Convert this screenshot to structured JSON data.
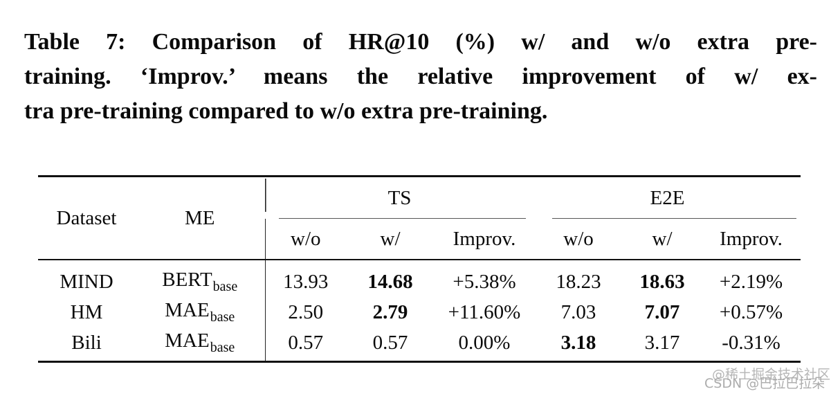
{
  "caption": {
    "lines": [
      "Table 7: Comparison of HR@10 (%) w/ and w/o extra pre-",
      "training. ‘Improv.’ means the relative improvement of w/ ex-",
      "tra pre-training compared to w/o extra pre-training."
    ]
  },
  "table": {
    "header": {
      "dataset_label": "Dataset",
      "me_label": "ME",
      "groups": [
        {
          "label": "TS"
        },
        {
          "label": "E2E"
        }
      ],
      "subheaders": [
        "w/o",
        "w/",
        "Improv.",
        "w/o",
        "w/",
        "Improv."
      ]
    },
    "rows": [
      {
        "dataset": "MIND",
        "me": "BERT",
        "me_sub": "base",
        "cells": [
          {
            "v": "13.93",
            "bold": false
          },
          {
            "v": "14.68",
            "bold": true
          },
          {
            "v": "+5.38%",
            "bold": false
          },
          {
            "v": "18.23",
            "bold": false
          },
          {
            "v": "18.63",
            "bold": true
          },
          {
            "v": "+2.19%",
            "bold": false
          }
        ]
      },
      {
        "dataset": "HM",
        "me": "MAE",
        "me_sub": "base",
        "cells": [
          {
            "v": "2.50",
            "bold": false
          },
          {
            "v": "2.79",
            "bold": true
          },
          {
            "v": "+11.60%",
            "bold": false
          },
          {
            "v": "7.03",
            "bold": false
          },
          {
            "v": "7.07",
            "bold": true
          },
          {
            "v": "+0.57%",
            "bold": false
          }
        ]
      },
      {
        "dataset": "Bili",
        "me": "MAE",
        "me_sub": "base",
        "cells": [
          {
            "v": "0.57",
            "bold": false
          },
          {
            "v": "0.57",
            "bold": false
          },
          {
            "v": "0.00%",
            "bold": false
          },
          {
            "v": "3.18",
            "bold": true
          },
          {
            "v": "3.17",
            "bold": false
          },
          {
            "v": "-0.31%",
            "bold": false
          }
        ]
      }
    ]
  },
  "watermark": {
    "line1": "@稀土掘金技术社区",
    "line2": "CSDN @巴拉巴拉朵"
  },
  "colors": {
    "text": "#0a0a0a",
    "heavy_rule": "#111111",
    "cmidrule": "#555555",
    "watermark": "#b6b6b6"
  }
}
